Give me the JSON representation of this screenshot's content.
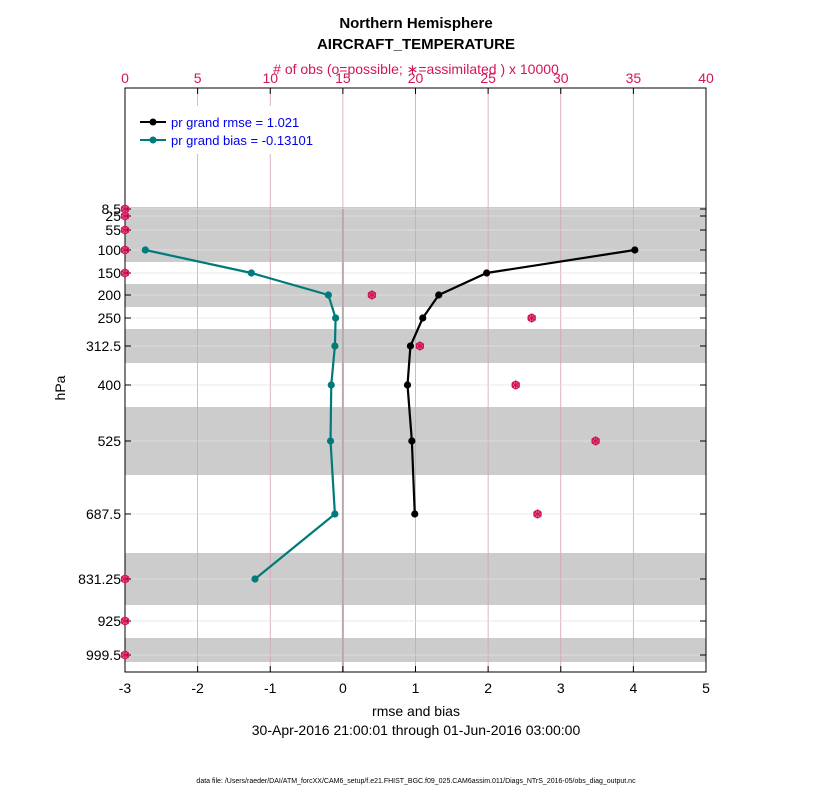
{
  "chart_data": {
    "type": "line",
    "title": "Northern Hemisphere",
    "subtitle": "AIRCRAFT_TEMPERATURE",
    "top_axis_label": "# of obs (o=possible; ∗=assimilated ) x 10000",
    "xlabel": "rmse and bias",
    "date_range": "30-Apr-2016 21:00:01 through 01-Jun-2016 03:00:00",
    "ylabel": "hPa",
    "footnote": "data file: /Users/raeder/DAI/ATM_forcXX/CAM6_setup/f.e21.FHIST_BGC.f09_025.CAM6assim.011/Diags_NTrS_2016-05/obs_diag_output.nc",
    "xlim": [
      -3,
      5
    ],
    "top_xlim": [
      0,
      40
    ],
    "x_ticks": [
      "-3",
      "-2",
      "-1",
      "0",
      "1",
      "2",
      "3",
      "4",
      "5"
    ],
    "top_ticks": [
      "0",
      "5",
      "10",
      "15",
      "20",
      "25",
      "30",
      "35",
      "40"
    ],
    "y_ticks": [
      "8.5",
      "25",
      "55",
      "100",
      "150",
      "200",
      "250",
      "312.5",
      "400",
      "525",
      "687.5",
      "831.25",
      "925",
      "999.5"
    ],
    "y_levels": [
      8.5,
      25,
      55,
      100,
      150,
      200,
      250,
      312.5,
      400,
      525,
      687.5,
      831.25,
      925,
      999.5
    ],
    "y_ticks_idx": [
      0,
      1,
      2,
      3,
      4,
      5,
      6,
      7,
      8,
      9,
      10,
      11,
      12,
      13
    ],
    "gray_bands": [
      [
        0,
        1
      ],
      [
        2,
        2
      ],
      [
        4,
        4
      ],
      [
        6,
        6
      ],
      [
        8,
        8
      ],
      [
        10,
        10
      ],
      [
        12,
        12
      ]
    ],
    "legend": [
      {
        "label": "pr grand rmse = 1.021",
        "color": "#000000"
      },
      {
        "label": "pr grand bias = -0.13101",
        "color": "#007a7a"
      }
    ],
    "series": [
      {
        "name": "rmse",
        "color": "#000000",
        "points": [
          [
            4.02,
            100
          ],
          [
            1.98,
            150
          ],
          [
            1.32,
            200
          ],
          [
            1.1,
            250
          ],
          [
            0.93,
            312.5
          ],
          [
            0.89,
            400
          ],
          [
            0.95,
            525
          ],
          [
            0.99,
            687.5
          ]
        ]
      },
      {
        "name": "bias",
        "color": "#007a7a",
        "points": [
          [
            -2.72,
            100
          ],
          [
            -1.26,
            150
          ],
          [
            -0.2,
            200
          ],
          [
            -0.1,
            250
          ],
          [
            -0.11,
            312.5
          ],
          [
            -0.16,
            400
          ],
          [
            -0.17,
            525
          ],
          [
            -0.11,
            687.5
          ],
          [
            -1.21,
            831.25
          ]
        ]
      }
    ],
    "obs_possible": [
      [
        0,
        8.5
      ],
      [
        0,
        25
      ],
      [
        0,
        55
      ],
      [
        0,
        100
      ],
      [
        0,
        150
      ],
      [
        17,
        200
      ],
      [
        28,
        250
      ],
      [
        20.3,
        312.5
      ],
      [
        26.9,
        400
      ],
      [
        32.4,
        525
      ],
      [
        28.4,
        687.5
      ],
      [
        0,
        831.25
      ],
      [
        0,
        925
      ],
      [
        0,
        999.5
      ]
    ],
    "obs_assimilated": [
      [
        0,
        8.5
      ],
      [
        0,
        25
      ],
      [
        0,
        55
      ],
      [
        0,
        100
      ],
      [
        0,
        150
      ],
      [
        17,
        200
      ],
      [
        28,
        250
      ],
      [
        20.3,
        312.5
      ],
      [
        26.9,
        400
      ],
      [
        32.4,
        525
      ],
      [
        28.4,
        687.5
      ],
      [
        0,
        831.25
      ],
      [
        0,
        925
      ],
      [
        0,
        999.5
      ]
    ]
  }
}
